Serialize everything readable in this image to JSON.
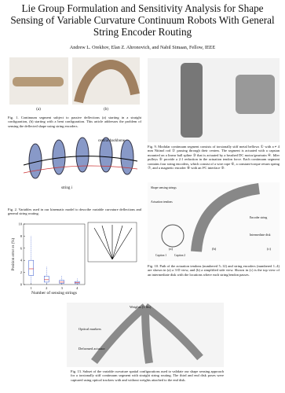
{
  "header": {
    "title": "Lie Group Formulation and Sensitivity Analysis for Shape Sensing of Variable Curvature Continuum Robots With General String Encoder Routing",
    "authors": "Andrew L. Orekhov, Elan Z. Ahronovich, and Nabil Simaan, Fellow, IEEE"
  },
  "fig1": {
    "labels": [
      "(a)",
      "(b)"
    ],
    "caption": "Fig. 1.   Continuum segment subject to passive deflections (a) starting in a straight configuration, (b) starting with a bent configuration. This article addresses the problem of sensing the deflected shape using string encoders."
  },
  "fig2": {
    "labels": [
      "central backbone",
      "string i"
    ],
    "caption": "Fig. 2.   Variables used in our kinematic model to describe variable curvature deflections and general string routing."
  },
  "fig3": {
    "chart_data": {
      "type": "box",
      "xlabel": "Number of sensing strings",
      "ylabel": "Position error εs (%)",
      "xlim": [
        0.5,
        4.5
      ],
      "xticks": [
        1,
        2,
        3,
        4
      ],
      "ylim": [
        0,
        10
      ],
      "yticks": [
        0,
        2,
        4,
        6,
        8,
        10
      ],
      "color": "#3355cc",
      "boxes": [
        {
          "x": 1,
          "low": 0.2,
          "q1": 1.5,
          "median": 2.6,
          "q3": 4.0,
          "high": 8.0
        },
        {
          "x": 2,
          "low": 0.1,
          "q1": 0.4,
          "median": 0.8,
          "q3": 1.4,
          "high": 3.0
        },
        {
          "x": 3,
          "low": 0.05,
          "q1": 0.2,
          "median": 0.4,
          "q3": 0.7,
          "high": 1.5
        },
        {
          "x": 4,
          "low": 0.05,
          "q1": 0.15,
          "median": 0.3,
          "q3": 0.5,
          "high": 1.0
        }
      ]
    }
  },
  "fig9": {
    "caption": "Fig. 9.   Modular continuum segment consists of torsionally stiff metal bellows ① with a ≠ 4 mm Nitinol rod ② passing through their centers. The segment is actuated with a capstan mounted on a linear ball spline ③ that is actuated by a brushed DC motor/geartrain ④. Idler pulleys ⑤ provide a 2:1 reduction in the actuation tendon force. Each continuum segment contains four string encoders, which consist of a wire rope ⑥, a constant-torque return spring ⑦, and a magnetic encoder ⑧ with an I²C interface ⑨."
  },
  "fig10": {
    "labels": [
      "Shape sensing strings",
      "Actuation tendons",
      "Caption 1",
      "Caption 2",
      "Encoder string",
      "Intermediate disk",
      "(a)",
      "(b)",
      "(c)"
    ],
    "caption": "Fig. 10.   Path of the actuation tendons (numbered 5–12) and string encoders (numbered 1–4) are shown in (a) a 3-D view, and (b) a simplified side view. Shown in (c) is the top view of an intermediate disk with the locations where each string/tendon passes."
  },
  "fig13": {
    "labels": [
      "Weights (1 lbs)",
      "Optical markers",
      "Deformed actuator"
    ],
    "caption": "Fig. 13.   Subset of the variable curvature spatial configurations used to validate our shape sensing approach for a torsionally stiff continuum segment with straight string routing. The third and end disk poses were captured using optical trackers with and without weights attached to the end disk."
  }
}
